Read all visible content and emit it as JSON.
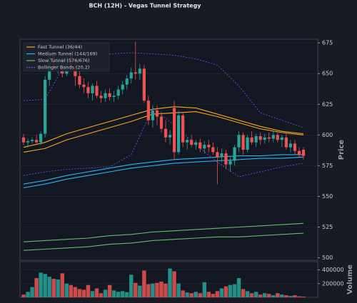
{
  "chart_data": {
    "type": "candlestick",
    "title": "BCH (12H) - Vegas Tunnel Strategy",
    "ylabel": "Price",
    "ylim": [
      498,
      678
    ],
    "yticks": [
      500,
      525,
      550,
      575,
      600,
      625,
      650,
      675
    ],
    "grid": true,
    "legend": "upper left",
    "up_color": "#26a69a",
    "down_color": "#ef5350",
    "open": [
      598,
      594,
      595,
      596,
      594,
      601,
      645,
      665,
      655,
      663,
      650,
      664,
      655,
      648,
      641,
      639,
      634,
      640,
      632,
      630,
      634,
      631,
      632,
      637,
      641,
      646,
      651,
      650,
      654,
      628,
      612,
      620,
      615,
      605,
      598,
      622,
      586,
      616,
      594,
      596,
      592,
      594,
      589,
      592,
      590,
      586,
      582,
      585,
      576,
      579,
      590,
      600,
      588,
      598,
      594,
      599,
      596,
      598,
      597,
      600,
      596,
      598,
      590,
      593,
      587,
      588
    ],
    "high": [
      601,
      597,
      598,
      600,
      603,
      648,
      670,
      672,
      668,
      666,
      668,
      670,
      662,
      652,
      646,
      643,
      642,
      644,
      636,
      637,
      638,
      636,
      640,
      644,
      649,
      655,
      676,
      658,
      657,
      632,
      624,
      624,
      619,
      612,
      604,
      628,
      620,
      618,
      598,
      600,
      596,
      597,
      595,
      596,
      594,
      590,
      589,
      588,
      582,
      592,
      603,
      602,
      600,
      603,
      601,
      602,
      601,
      602,
      603,
      602,
      600,
      601,
      596,
      596,
      590,
      590
    ],
    "low": [
      592,
      590,
      593,
      593,
      592,
      598,
      640,
      652,
      650,
      647,
      648,
      652,
      640,
      638,
      634,
      630,
      628,
      630,
      626,
      627,
      628,
      627,
      629,
      633,
      637,
      642,
      645,
      645,
      626,
      608,
      606,
      608,
      602,
      594,
      592,
      580,
      584,
      590,
      588,
      590,
      588,
      586,
      585,
      586,
      584,
      560,
      578,
      572,
      570,
      575,
      586,
      584,
      586,
      592,
      590,
      592,
      593,
      594,
      594,
      594,
      590,
      588,
      586,
      584,
      582,
      580
    ],
    "close": [
      594,
      595,
      596,
      594,
      601,
      645,
      665,
      655,
      663,
      650,
      664,
      655,
      648,
      641,
      639,
      634,
      640,
      632,
      630,
      634,
      631,
      632,
      637,
      641,
      646,
      651,
      650,
      654,
      628,
      612,
      620,
      615,
      605,
      598,
      600,
      586,
      616,
      594,
      596,
      592,
      594,
      589,
      592,
      590,
      586,
      582,
      585,
      576,
      579,
      590,
      600,
      588,
      598,
      594,
      599,
      596,
      598,
      597,
      600,
      596,
      598,
      590,
      593,
      587,
      584,
      583
    ],
    "lines": [
      {
        "name": "Fast Tunnel (36/44)",
        "color": "#f5a623",
        "dashed": false,
        "x": [
          0,
          5,
          10,
          15,
          20,
          25,
          30,
          35,
          40,
          45,
          50,
          55,
          60,
          65
        ],
        "upper": [
          590,
          594,
          601,
          606,
          611,
          616,
          621,
          623,
          622,
          617,
          612,
          607,
          603,
          601
        ],
        "lower": [
          586,
          589,
          596,
          601,
          606,
          611,
          617,
          618,
          619,
          615,
          610,
          605,
          602,
          600
        ]
      },
      {
        "name": "Medium Tunnel (144/169)",
        "color": "#29b6f6",
        "dashed": false,
        "x": [
          0,
          5,
          10,
          15,
          20,
          25,
          30,
          35,
          40,
          45,
          50,
          55,
          60,
          65
        ],
        "upper": [
          560,
          563,
          567,
          570,
          573,
          576,
          578,
          580,
          581,
          582,
          583,
          583,
          584,
          584
        ],
        "lower": [
          557,
          560,
          564,
          567,
          570,
          573,
          575,
          577,
          578,
          579,
          580,
          581,
          581,
          582
        ]
      },
      {
        "name": "Slow Tunnel (576/676)",
        "color": "#66bb6a",
        "dashed": false,
        "x": [
          0,
          5,
          10,
          15,
          20,
          25,
          30,
          35,
          40,
          45,
          50,
          55,
          60,
          65
        ],
        "upper": [
          513,
          514,
          515,
          516,
          518,
          519,
          521,
          522,
          523,
          524,
          525,
          526,
          527,
          528
        ],
        "lower": [
          506,
          507,
          508,
          509,
          511,
          512,
          514,
          515,
          516,
          517,
          517,
          518,
          519,
          520
        ]
      },
      {
        "name": "Bollinger Bands (20,2)",
        "color": "#7c4dff",
        "dashed": true,
        "x": [
          0,
          5,
          10,
          15,
          20,
          25,
          30,
          35,
          40,
          45,
          50,
          55,
          60,
          65
        ],
        "upper": [
          628,
          629,
          660,
          664,
          666,
          667,
          666,
          665,
          662,
          657,
          640,
          618,
          612,
          606
        ],
        "lower": [
          567,
          570,
          572,
          573,
          574,
          584,
          622,
          608,
          592,
          578,
          566,
          570,
          574,
          577
        ]
      }
    ],
    "volume": {
      "label": "Volume",
      "ylim": [
        0,
        520000
      ],
      "yticks": [
        200000,
        400000
      ],
      "values": [
        40000,
        80000,
        150000,
        280000,
        360000,
        340000,
        300000,
        270000,
        260000,
        350000,
        200000,
        180000,
        150000,
        120000,
        110000,
        180000,
        90000,
        130000,
        60000,
        110000,
        180000,
        100000,
        80000,
        90000,
        75000,
        330000,
        210000,
        170000,
        390000,
        190000,
        200000,
        210000,
        230000,
        200000,
        420000,
        380000,
        200000,
        100000,
        70000,
        60000,
        80000,
        60000,
        220000,
        80000,
        50000,
        90000,
        130000,
        160000,
        180000,
        190000,
        280000,
        120000,
        90000,
        60000,
        80000,
        40000,
        60000,
        50000,
        30000,
        60000,
        40000,
        30000,
        20000,
        30000,
        15000,
        10000
      ]
    }
  }
}
